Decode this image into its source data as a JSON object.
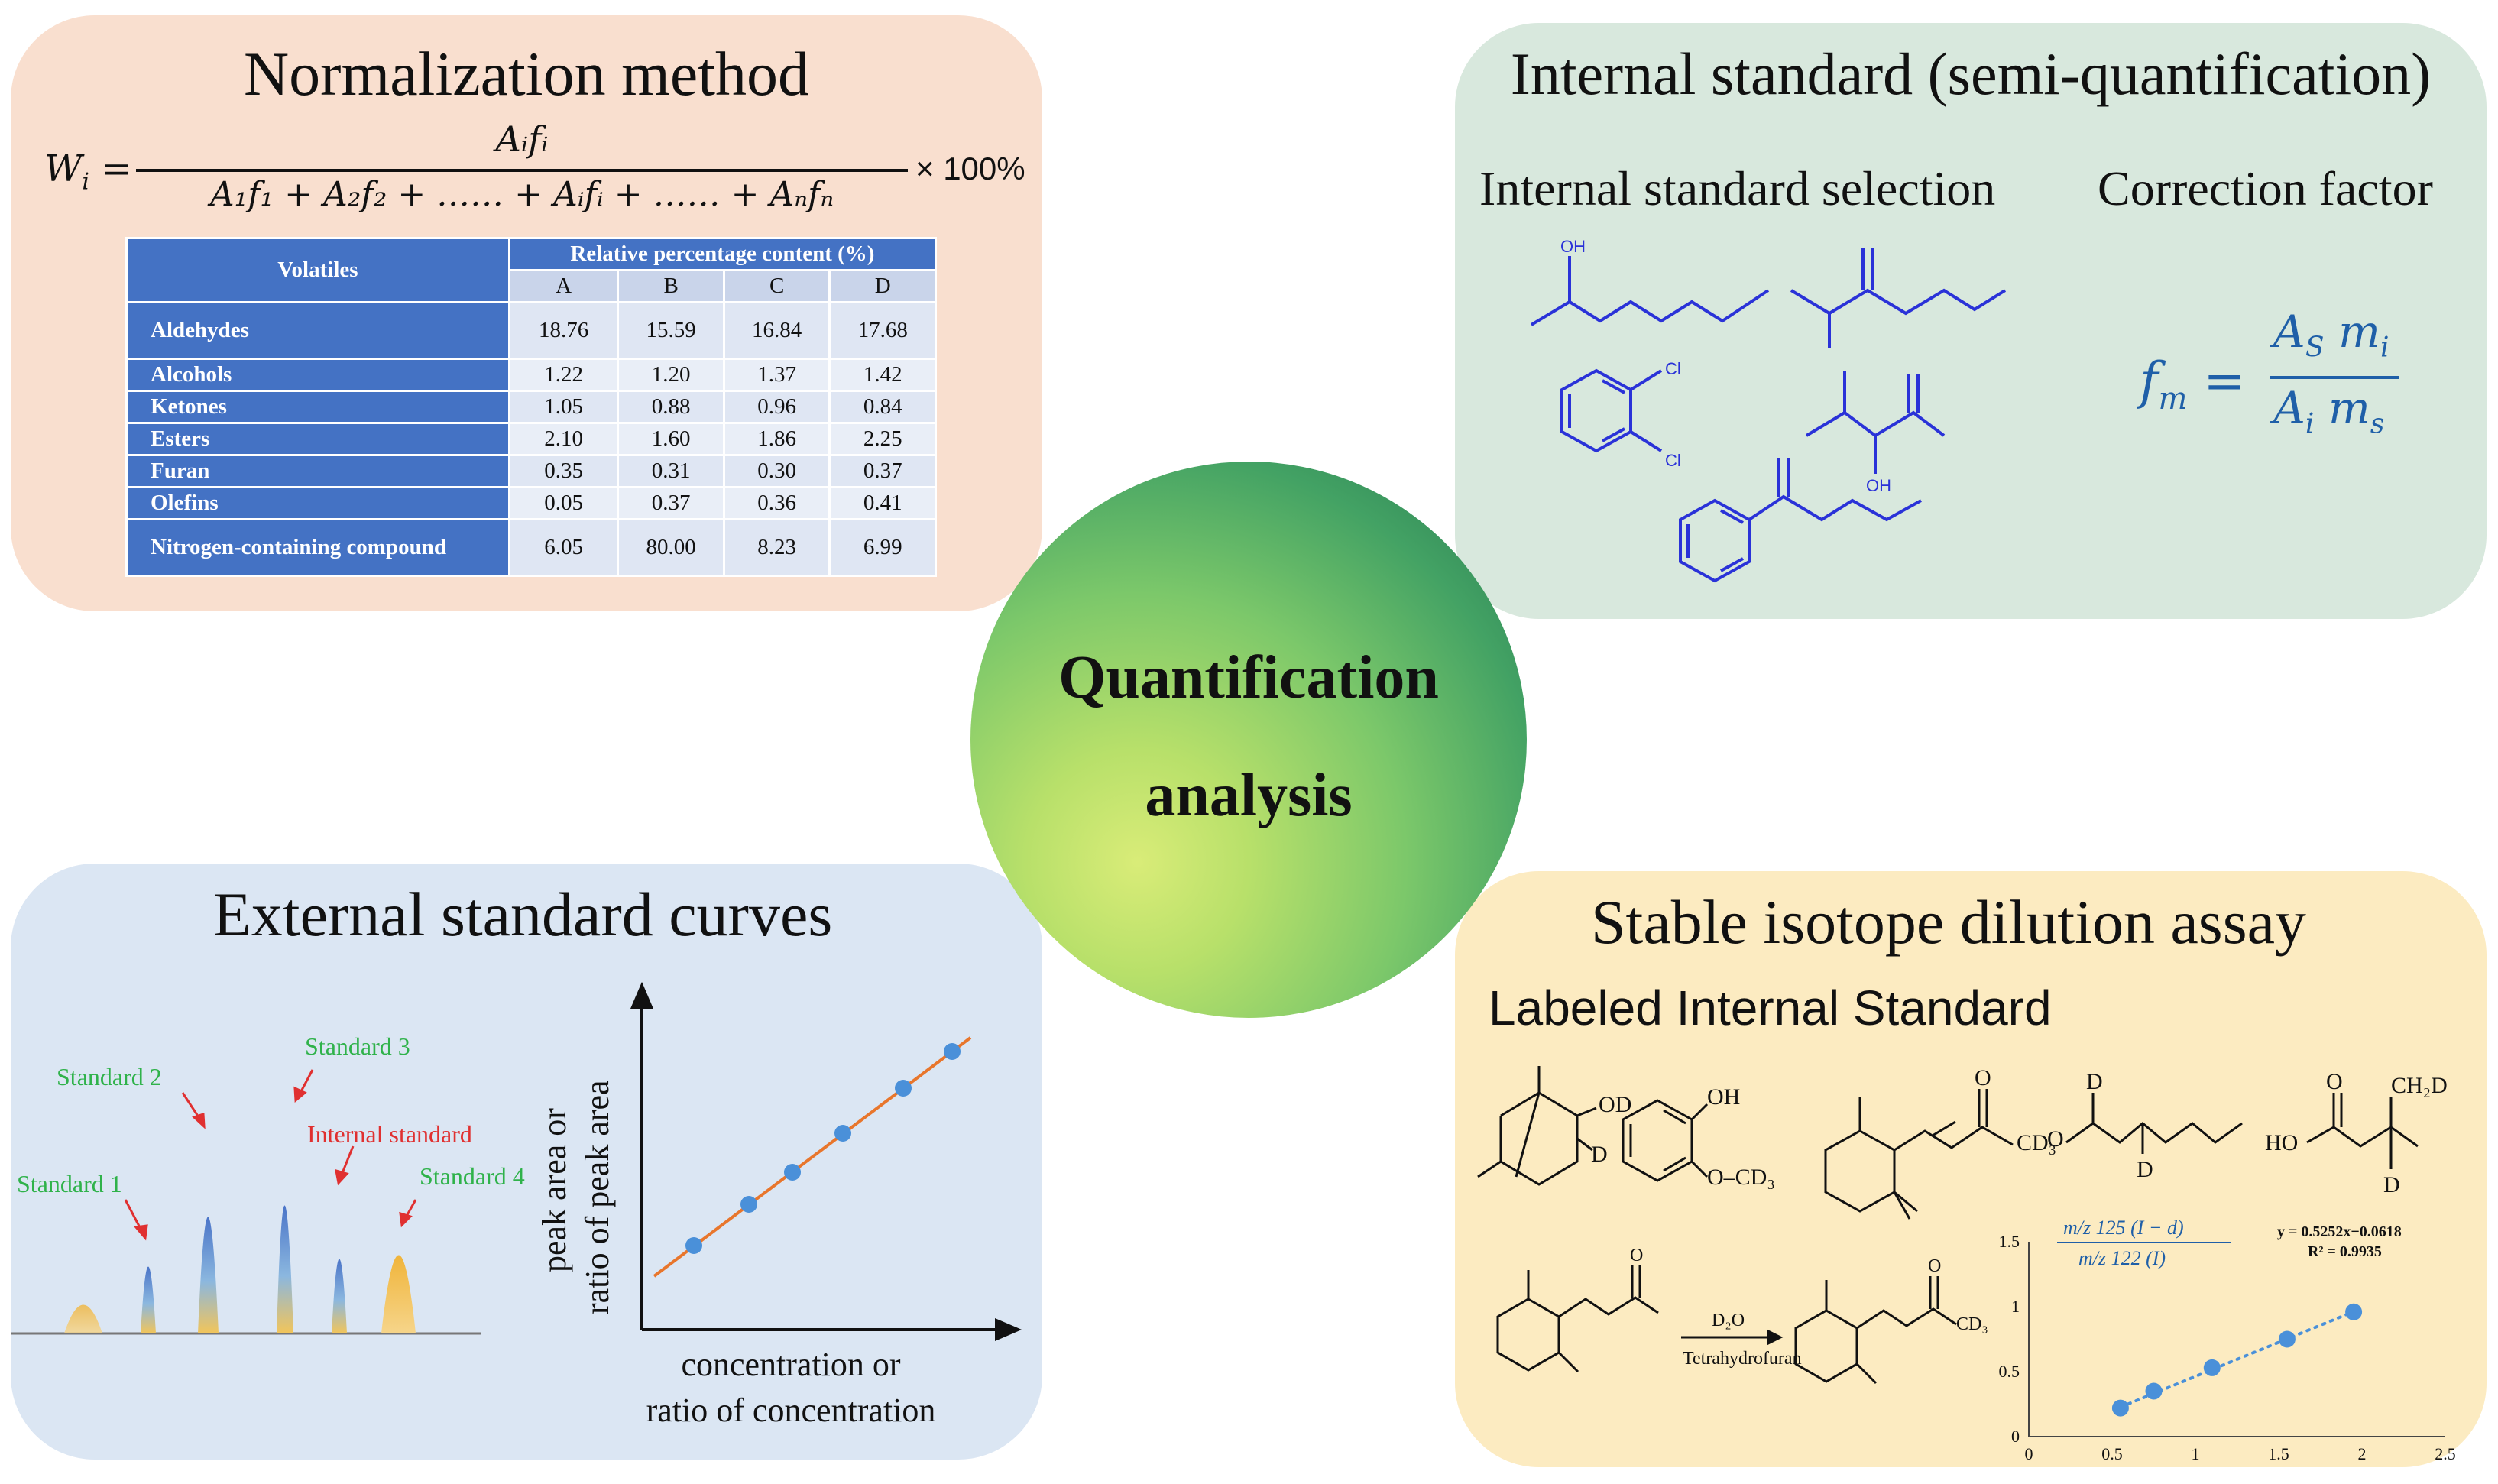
{
  "center": {
    "line1": "Quantification",
    "line2": "analysis"
  },
  "normalization": {
    "title": "Normalization method",
    "formula": {
      "lhs": "W",
      "lhs_sub": "i",
      "numerator": "Aᵢfᵢ",
      "denominator": "A₁f₁ + A₂f₂ + …… + Aᵢfᵢ + …… + Aₙfₙ",
      "suffix": "× 100%"
    },
    "table": {
      "col_label": "Volatiles",
      "group_label": "Relative percentage content (%)",
      "columns": [
        "A",
        "B",
        "C",
        "D"
      ],
      "rows": [
        {
          "name": "Aldehydes",
          "values": [
            "18.76",
            "15.59",
            "16.84",
            "17.68"
          ]
        },
        {
          "name": "Alcohols",
          "values": [
            "1.22",
            "1.20",
            "1.37",
            "1.42"
          ]
        },
        {
          "name": "Ketones",
          "values": [
            "1.05",
            "0.88",
            "0.96",
            "0.84"
          ]
        },
        {
          "name": "Esters",
          "values": [
            "2.10",
            "1.60",
            "1.86",
            "2.25"
          ]
        },
        {
          "name": "Furan",
          "values": [
            "0.35",
            "0.31",
            "0.30",
            "0.37"
          ]
        },
        {
          "name": "Olefins",
          "values": [
            "0.05",
            "0.37",
            "0.36",
            "0.41"
          ]
        },
        {
          "name": "Nitrogen-containing compound",
          "values": [
            "6.05",
            "80.00",
            "8.23",
            "6.99"
          ]
        }
      ]
    }
  },
  "internal": {
    "title": "Internal standard (semi-quantification)",
    "selection_label": "Internal standard selection",
    "correction_label": "Correction factor",
    "formula": {
      "lhs": "f",
      "lhs_sub": "m",
      "num_a": "A",
      "num_a_sub": "S",
      "num_m": "m",
      "num_m_sub": "i",
      "den_a": "A",
      "den_a_sub": "i",
      "den_m": "m",
      "den_m_sub": "s"
    },
    "labels": {
      "oh": "OH",
      "cl1": "Cl",
      "cl2": "Cl",
      "oh2": "OH"
    },
    "colors": {
      "structure": "#2a32d8",
      "formula": "#1f5fa8"
    }
  },
  "external": {
    "title": "External standard curves",
    "peaks": {
      "standard1": "Standard 1",
      "standard2": "Standard 2",
      "standard3": "Standard 3",
      "internal": "Internal standard",
      "standard4": "Standard 4"
    },
    "ylabel_line1": "peak area or",
    "ylabel_line2": "ratio of peak area",
    "xlabel_line1": "concentration or",
    "xlabel_line2": "ratio of concentration",
    "colors": {
      "standard_label": "#2fb24a",
      "internal_label": "#e03030",
      "line": "#e8762c",
      "points": "#4a90d9"
    }
  },
  "isotope": {
    "title": "Stable isotope dilution assay",
    "subtitle": "Labeled Internal Standard",
    "labels": {
      "od": "OD",
      "d1": "D",
      "oh": "OH",
      "ocd3": "O–CD₃",
      "cd3a": "CD₃",
      "d2": "D",
      "d3": "D",
      "o_ald": "O",
      "ho": "HO",
      "o_acid": "O",
      "ch2d": "CH₂D",
      "d4": "D",
      "o1": "O",
      "reagent": "D₂O",
      "solvent": "Tetrahydrofuran",
      "cd3b": "CD₃",
      "o2": "O",
      "o_k": "O"
    },
    "chart": {
      "ratio_num": "m/z 125 (I − d)",
      "ratio_den": "m/z 122 (I)",
      "equation": "y = 0.5252x−0.0618",
      "r2": "R² = 0.9935"
    }
  },
  "chart_data": {
    "type": "scatter",
    "title": "",
    "xlabel": "",
    "ylabel": "m/z 125 (I − d) / m/z 122 (I)",
    "xlim": [
      0,
      2.5
    ],
    "ylim": [
      0,
      1.5
    ],
    "xticks": [
      "0",
      "0.5",
      "1",
      "1.5",
      "2",
      "2.5"
    ],
    "yticks": [
      "0",
      "0.5",
      "1",
      "1.5"
    ],
    "x": [
      0.55,
      0.75,
      1.1,
      1.55,
      1.95
    ],
    "y": [
      0.22,
      0.35,
      0.53,
      0.75,
      0.96
    ],
    "trendline": {
      "slope": 0.5252,
      "intercept": -0.0618,
      "style": "dotted"
    }
  }
}
